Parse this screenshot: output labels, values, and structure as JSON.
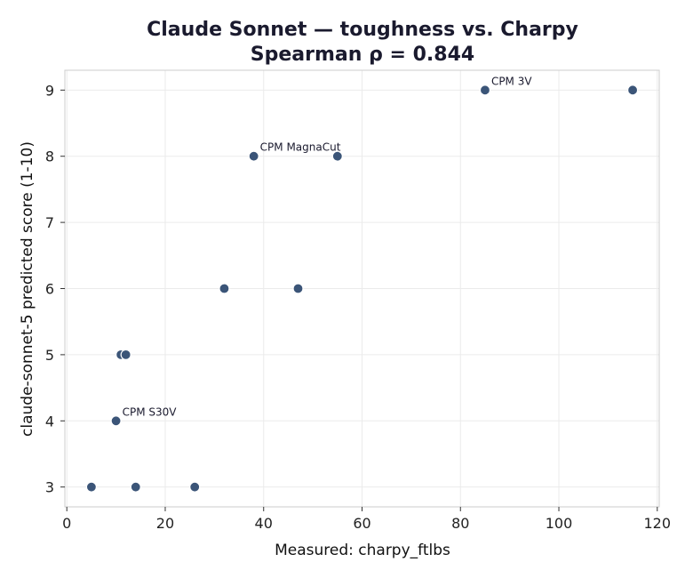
{
  "chart_data": {
    "type": "scatter",
    "title": "Claude Sonnet — toughness vs. Charpy",
    "subtitle": "Spearman ρ = 0.844",
    "xlabel": "Measured: charpy_ftlbs",
    "ylabel": "claude-sonnet-5 predicted score (1-10)",
    "xlim": [
      -0.4,
      120.4
    ],
    "ylim": [
      2.7,
      9.3
    ],
    "x_ticks": [
      0,
      20,
      40,
      60,
      80,
      100,
      120
    ],
    "y_ticks": [
      3,
      4,
      5,
      6,
      7,
      8,
      9
    ],
    "grid": true,
    "marker_color": "#3b5578",
    "points": [
      {
        "x": 5,
        "y": 3,
        "label": ""
      },
      {
        "x": 14,
        "y": 3,
        "label": ""
      },
      {
        "x": 26,
        "y": 3,
        "label": ""
      },
      {
        "x": 10,
        "y": 4,
        "label": "CPM S30V"
      },
      {
        "x": 11,
        "y": 5,
        "label": ""
      },
      {
        "x": 12,
        "y": 5,
        "label": ""
      },
      {
        "x": 32,
        "y": 6,
        "label": ""
      },
      {
        "x": 47,
        "y": 6,
        "label": ""
      },
      {
        "x": 38,
        "y": 8,
        "label": "CPM MagnaCut"
      },
      {
        "x": 55,
        "y": 8,
        "label": ""
      },
      {
        "x": 85,
        "y": 9,
        "label": "CPM 3V"
      },
      {
        "x": 115,
        "y": 9,
        "label": ""
      }
    ]
  }
}
